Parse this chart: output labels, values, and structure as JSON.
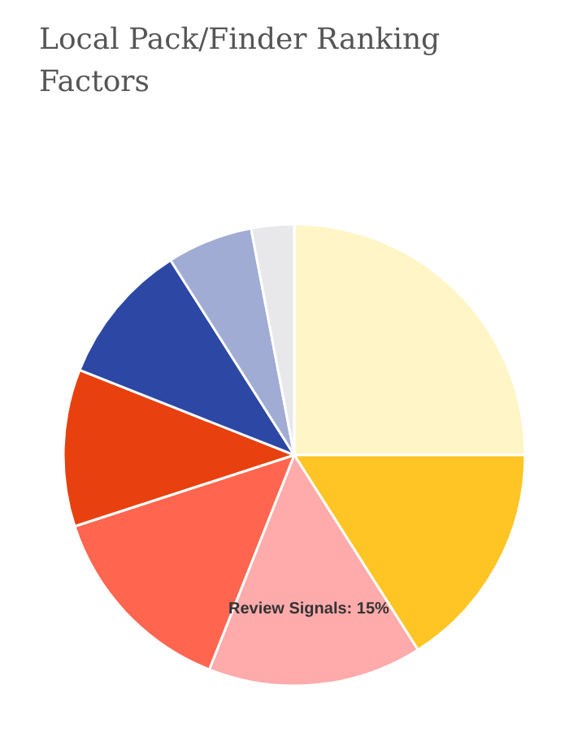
{
  "chart_data": {
    "type": "pie",
    "title": "Local Pack/Finder Ranking Factors",
    "categories": [
      null,
      null,
      "Review Signals",
      null,
      null,
      null,
      null,
      null
    ],
    "values": [
      25,
      16,
      15,
      14,
      11,
      10,
      6,
      3
    ],
    "colors": [
      "#fff5c6",
      "#ffc525",
      "#ffabab",
      "#ff654f",
      "#e8400e",
      "#2d47a4",
      "#a0acd4",
      "#e8e8ea"
    ],
    "value_labels": [
      null,
      null,
      "15%",
      null,
      null,
      null,
      null,
      null
    ],
    "legend": false
  }
}
